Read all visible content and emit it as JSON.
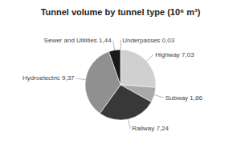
{
  "chart_data": {
    "type": "pie",
    "title": "Tunnel volume by tunnel type (10⁶ m³)",
    "categories": [
      "Underpasses 0,03",
      "Highway 7,03",
      "Subway 1,86",
      "Railway 7,24",
      "Hydroelectric 9,37",
      "Sewer and Utilities 1,44"
    ],
    "values": [
      0.03,
      7.03,
      1.86,
      7.24,
      9.37,
      1.44
    ],
    "colors": [
      "#ebebeb",
      "#d0d0d0",
      "#a8a8a8",
      "#383838",
      "#909090",
      "#1a1a1a"
    ]
  }
}
